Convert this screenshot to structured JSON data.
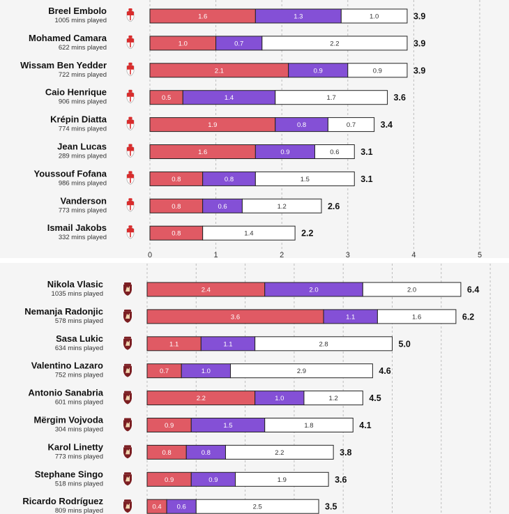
{
  "colors": {
    "seg1": "#e05a64",
    "seg2": "#8450d6",
    "seg3": "#ffffff",
    "border": "#222222",
    "grid": "#bdbdbd",
    "panel_bg": "#f5f5f5",
    "monaco_red": "#d92c2c",
    "torino_maroon": "#7b1e22"
  },
  "chart_data": [
    {
      "type": "bar",
      "stacked": true,
      "orientation": "horizontal",
      "team_badge": "monaco-badge-icon",
      "xlim": [
        0,
        5
      ],
      "xticks": [
        "0",
        "1",
        "2",
        "3",
        "4",
        "5"
      ],
      "players": [
        {
          "name": "Breel Embolo",
          "mins": "1005 mins played",
          "values": [
            1.6,
            1.3,
            1.0
          ],
          "labels": [
            "1.6",
            "1.3",
            "1.0"
          ],
          "total": "3.9"
        },
        {
          "name": "Mohamed Camara",
          "mins": "622 mins played",
          "values": [
            1.0,
            0.7,
            2.2
          ],
          "labels": [
            "1.0",
            "0.7",
            "2.2"
          ],
          "total": "3.9"
        },
        {
          "name": "Wissam Ben Yedder",
          "mins": "722 mins played",
          "values": [
            2.1,
            0.9,
            0.9
          ],
          "labels": [
            "2.1",
            "0.9",
            "0.9"
          ],
          "total": "3.9"
        },
        {
          "name": "Caio Henrique",
          "mins": "906 mins played",
          "values": [
            0.5,
            1.4,
            1.7
          ],
          "labels": [
            "0.5",
            "1.4",
            "1.7"
          ],
          "total": "3.6"
        },
        {
          "name": "Krépin Diatta",
          "mins": "774 mins played",
          "values": [
            1.9,
            0.8,
            0.7
          ],
          "labels": [
            "1.9",
            "0.8",
            "0.7"
          ],
          "total": "3.4"
        },
        {
          "name": "Jean Lucas",
          "mins": "289 mins played",
          "values": [
            1.6,
            0.9,
            0.6
          ],
          "labels": [
            "1.6",
            "0.9",
            "0.6"
          ],
          "total": "3.1"
        },
        {
          "name": "Youssouf Fofana",
          "mins": "986 mins played",
          "values": [
            0.8,
            0.8,
            1.5
          ],
          "labels": [
            "0.8",
            "0.8",
            "1.5"
          ],
          "total": "3.1"
        },
        {
          "name": "Vanderson",
          "mins": "773 mins played",
          "values": [
            0.8,
            0.6,
            1.2
          ],
          "labels": [
            "0.8",
            "0.6",
            "1.2"
          ],
          "total": "2.6"
        },
        {
          "name": "Ismail Jakobs",
          "mins": "332 mins played",
          "values": [
            0.8,
            0,
            1.4
          ],
          "labels": [
            "0.8",
            "",
            "1.4"
          ],
          "total": "2.2"
        }
      ]
    },
    {
      "type": "bar",
      "stacked": true,
      "orientation": "horizontal",
      "team_badge": "torino-badge-icon",
      "xlim": [
        0,
        7.2
      ],
      "xticks": [],
      "players": [
        {
          "name": "Nikola Vlasic",
          "mins": "1035 mins played",
          "values": [
            2.4,
            2.0,
            2.0
          ],
          "labels": [
            "2.4",
            "2.0",
            "2.0"
          ],
          "total": "6.4"
        },
        {
          "name": "Nemanja Radonjic",
          "mins": "578 mins played",
          "values": [
            3.6,
            1.1,
            1.6
          ],
          "labels": [
            "3.6",
            "1.1",
            "1.6"
          ],
          "total": "6.2"
        },
        {
          "name": "Sasa Lukic",
          "mins": "634 mins played",
          "values": [
            1.1,
            1.1,
            2.8
          ],
          "labels": [
            "1.1",
            "1.1",
            "2.8"
          ],
          "total": "5.0"
        },
        {
          "name": "Valentino Lazaro",
          "mins": "752 mins played",
          "values": [
            0.7,
            1.0,
            2.9
          ],
          "labels": [
            "0.7",
            "1.0",
            "2.9"
          ],
          "total": "4.6"
        },
        {
          "name": "Antonio Sanabria",
          "mins": "601 mins played",
          "values": [
            2.2,
            1.0,
            1.2
          ],
          "labels": [
            "2.2",
            "1.0",
            "1.2"
          ],
          "total": "4.5"
        },
        {
          "name": "Mërgim Vojvoda",
          "mins": "304 mins played",
          "values": [
            0.9,
            1.5,
            1.8
          ],
          "labels": [
            "0.9",
            "1.5",
            "1.8"
          ],
          "total": "4.1"
        },
        {
          "name": "Karol Linetty",
          "mins": "773 mins played",
          "values": [
            0.8,
            0.8,
            2.2
          ],
          "labels": [
            "0.8",
            "0.8",
            "2.2"
          ],
          "total": "3.8"
        },
        {
          "name": "Stephane Singo",
          "mins": "518 mins played",
          "values": [
            0.9,
            0.9,
            1.9
          ],
          "labels": [
            "0.9",
            "0.9",
            "1.9"
          ],
          "total": "3.6"
        },
        {
          "name": "Ricardo Rodríguez",
          "mins": "809 mins played",
          "values": [
            0.4,
            0.6,
            2.5
          ],
          "labels": [
            "0.4",
            "0.6",
            "2.5"
          ],
          "total": "3.5"
        }
      ]
    }
  ]
}
